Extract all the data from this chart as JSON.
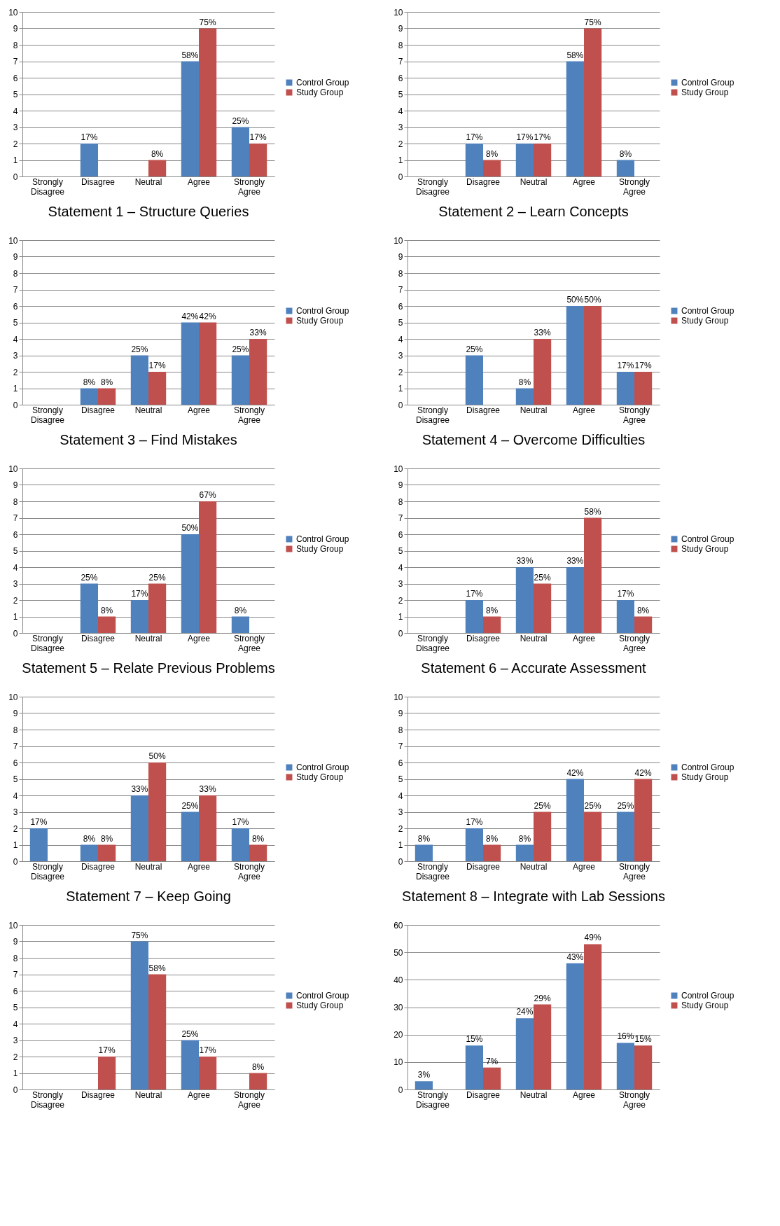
{
  "chart_data": [
    {
      "type": "bar",
      "title": "Statement 1 – Structure Queries",
      "categories": [
        "Strongly Disagree",
        "Disagree",
        "Neutral",
        "Agree",
        "Strongly Agree"
      ],
      "ylim": [
        0,
        10
      ],
      "yticks": [
        0,
        1,
        2,
        3,
        4,
        5,
        6,
        7,
        8,
        9,
        10
      ],
      "grid": "y",
      "legend": "right",
      "series": [
        {
          "name": "Control Group",
          "color": "#4f81bd",
          "values": [
            0,
            2,
            0,
            7,
            3
          ]
        },
        {
          "name": "Study Group",
          "color": "#c0504d",
          "values": [
            0,
            0,
            1,
            9,
            2
          ]
        }
      ],
      "annotations": [
        {
          "text": "17%",
          "x": "Disagree",
          "y": 2
        },
        {
          "text": "58%",
          "x": "Agree",
          "y": 7
        },
        {
          "text": "25%",
          "x": "Strongly Agree",
          "y": 3
        },
        {
          "text": "8%",
          "x": "Neutral",
          "y": 1
        },
        {
          "text": "75%",
          "x": "Agree",
          "y": 9
        },
        {
          "text": "17%",
          "x": "Strongly Agree",
          "y": 2
        }
      ]
    },
    {
      "type": "bar",
      "title": "Statement 2 – Learn Concepts",
      "categories": [
        "Strongly Disagree",
        "Disagree",
        "Neutral",
        "Agree",
        "Strongly Agree"
      ],
      "ylim": [
        0,
        10
      ],
      "yticks": [
        0,
        1,
        2,
        3,
        4,
        5,
        6,
        7,
        8,
        9,
        10
      ],
      "grid": "y",
      "legend": "right",
      "series": [
        {
          "name": "Control Group",
          "color": "#4f81bd",
          "values": [
            0,
            2,
            2,
            7,
            1
          ]
        },
        {
          "name": "Study Group",
          "color": "#c0504d",
          "values": [
            0,
            1,
            2,
            9,
            0
          ]
        }
      ],
      "annotations": [
        {
          "text": "17%",
          "x": "Disagree",
          "y": 2
        },
        {
          "text": "17%",
          "x": "Neutral",
          "y": 2
        },
        {
          "text": "58%",
          "x": "Agree",
          "y": 7
        },
        {
          "text": "8%",
          "x": "Strongly Agree",
          "y": 1
        },
        {
          "text": "8%",
          "x": "Disagree",
          "y": 1
        },
        {
          "text": "17%",
          "x": "Neutral",
          "y": 2
        },
        {
          "text": "75%",
          "x": "Agree",
          "y": 9
        }
      ]
    },
    {
      "type": "bar",
      "title": "Statement 3 – Find Mistakes",
      "categories": [
        "Strongly Disagree",
        "Disagree",
        "Neutral",
        "Agree",
        "Strongly Agree"
      ],
      "ylim": [
        0,
        10
      ],
      "yticks": [
        0,
        1,
        2,
        3,
        4,
        5,
        6,
        7,
        8,
        9,
        10
      ],
      "grid": "y",
      "legend": "right",
      "series": [
        {
          "name": "Control Group",
          "color": "#4f81bd",
          "values": [
            0,
            1,
            3,
            5,
            3
          ]
        },
        {
          "name": "Study Group",
          "color": "#c0504d",
          "values": [
            0,
            1,
            2,
            5,
            4
          ]
        }
      ],
      "annotations": [
        {
          "text": "8%",
          "x": "Disagree",
          "y": 1
        },
        {
          "text": "25%",
          "x": "Neutral",
          "y": 3
        },
        {
          "text": "42%",
          "x": "Agree",
          "y": 5
        },
        {
          "text": "25%",
          "x": "Strongly Agree",
          "y": 3
        },
        {
          "text": "8%",
          "x": "Disagree",
          "y": 1
        },
        {
          "text": "17%",
          "x": "Neutral",
          "y": 2
        },
        {
          "text": "42%",
          "x": "Agree",
          "y": 5
        },
        {
          "text": "33%",
          "x": "Strongly Agree",
          "y": 4
        }
      ]
    },
    {
      "type": "bar",
      "title": "Statement 4 – Overcome Difficulties",
      "categories": [
        "Strongly Disagree",
        "Disagree",
        "Neutral",
        "Agree",
        "Strongly Agree"
      ],
      "ylim": [
        0,
        10
      ],
      "yticks": [
        0,
        1,
        2,
        3,
        4,
        5,
        6,
        7,
        8,
        9,
        10
      ],
      "grid": "y",
      "legend": "right",
      "series": [
        {
          "name": "Control Group",
          "color": "#4f81bd",
          "values": [
            0,
            3,
            1,
            6,
            2
          ]
        },
        {
          "name": "Study Group",
          "color": "#c0504d",
          "values": [
            0,
            0,
            4,
            6,
            2
          ]
        }
      ],
      "annotations": [
        {
          "text": "25%",
          "x": "Disagree",
          "y": 3
        },
        {
          "text": "8%",
          "x": "Neutral",
          "y": 1
        },
        {
          "text": "50%",
          "x": "Agree",
          "y": 6
        },
        {
          "text": "17%",
          "x": "Strongly Agree",
          "y": 2
        },
        {
          "text": "33%",
          "x": "Neutral",
          "y": 4
        },
        {
          "text": "50%",
          "x": "Agree",
          "y": 6
        },
        {
          "text": "17%",
          "x": "Strongly Agree",
          "y": 2
        }
      ]
    },
    {
      "type": "bar",
      "title": "Statement 5 – Relate Previous Problems",
      "categories": [
        "Strongly Disagree",
        "Disagree",
        "Neutral",
        "Agree",
        "Strongly Agree"
      ],
      "ylim": [
        0,
        10
      ],
      "yticks": [
        0,
        1,
        2,
        3,
        4,
        5,
        6,
        7,
        8,
        9,
        10
      ],
      "grid": "y",
      "legend": "right",
      "series": [
        {
          "name": "Control Group",
          "color": "#4f81bd",
          "values": [
            0,
            3,
            2,
            6,
            1
          ]
        },
        {
          "name": "Study Group",
          "color": "#c0504d",
          "values": [
            0,
            1,
            3,
            8,
            0
          ]
        }
      ],
      "annotations": [
        {
          "text": "25%",
          "x": "Disagree",
          "y": 3
        },
        {
          "text": "17%",
          "x": "Neutral",
          "y": 2
        },
        {
          "text": "50%",
          "x": "Agree",
          "y": 6
        },
        {
          "text": "8%",
          "x": "Strongly Agree",
          "y": 1
        },
        {
          "text": "8%",
          "x": "Disagree",
          "y": 1
        },
        {
          "text": "25%",
          "x": "Neutral",
          "y": 3
        },
        {
          "text": "67%",
          "x": "Agree",
          "y": 8
        }
      ]
    },
    {
      "type": "bar",
      "title": "Statement 6 – Accurate Assessment",
      "categories": [
        "Strongly Disagree",
        "Disagree",
        "Neutral",
        "Agree",
        "Strongly Agree"
      ],
      "ylim": [
        0,
        10
      ],
      "yticks": [
        0,
        1,
        2,
        3,
        4,
        5,
        6,
        7,
        8,
        9,
        10
      ],
      "grid": "y",
      "legend": "right",
      "series": [
        {
          "name": "Control Group",
          "color": "#4f81bd",
          "values": [
            0,
            2,
            4,
            4,
            2
          ]
        },
        {
          "name": "Study Group",
          "color": "#c0504d",
          "values": [
            0,
            1,
            3,
            7,
            1
          ]
        }
      ],
      "annotations": [
        {
          "text": "17%",
          "x": "Disagree",
          "y": 2
        },
        {
          "text": "33%",
          "x": "Neutral",
          "y": 4
        },
        {
          "text": "33%",
          "x": "Agree",
          "y": 4
        },
        {
          "text": "17%",
          "x": "Strongly Agree",
          "y": 2
        },
        {
          "text": "8%",
          "x": "Disagree",
          "y": 1
        },
        {
          "text": "25%",
          "x": "Neutral",
          "y": 3
        },
        {
          "text": "58%",
          "x": "Agree",
          "y": 7
        },
        {
          "text": "8%",
          "x": "Strongly Agree",
          "y": 1
        }
      ]
    },
    {
      "type": "bar",
      "title": "Statement 7 – Keep Going",
      "categories": [
        "Strongly Disagree",
        "Disagree",
        "Neutral",
        "Agree",
        "Strongly Agree"
      ],
      "ylim": [
        0,
        10
      ],
      "yticks": [
        0,
        1,
        2,
        3,
        4,
        5,
        6,
        7,
        8,
        9,
        10
      ],
      "grid": "y",
      "legend": "right",
      "series": [
        {
          "name": "Control Group",
          "color": "#4f81bd",
          "values": [
            2,
            1,
            4,
            3,
            2
          ]
        },
        {
          "name": "Study Group",
          "color": "#c0504d",
          "values": [
            0,
            1,
            6,
            4,
            1
          ]
        }
      ],
      "annotations": [
        {
          "text": "17%",
          "x": "Strongly Disagree",
          "y": 2
        },
        {
          "text": "8%",
          "x": "Disagree",
          "y": 1
        },
        {
          "text": "33%",
          "x": "Neutral",
          "y": 4
        },
        {
          "text": "25%",
          "x": "Agree",
          "y": 3
        },
        {
          "text": "17%",
          "x": "Strongly Agree",
          "y": 2
        },
        {
          "text": "8%",
          "x": "Disagree",
          "y": 1
        },
        {
          "text": "50%",
          "x": "Neutral",
          "y": 6
        },
        {
          "text": "33%",
          "x": "Agree",
          "y": 4
        },
        {
          "text": "8%",
          "x": "Strongly Agree",
          "y": 1
        }
      ]
    },
    {
      "type": "bar",
      "title": "Statement 8 – Integrate with Lab Sessions",
      "categories": [
        "Strongly Disagree",
        "Disagree",
        "Neutral",
        "Agree",
        "Strongly Agree"
      ],
      "ylim": [
        0,
        10
      ],
      "yticks": [
        0,
        1,
        2,
        3,
        4,
        5,
        6,
        7,
        8,
        9,
        10
      ],
      "grid": "y",
      "legend": "right",
      "series": [
        {
          "name": "Control Group",
          "color": "#4f81bd",
          "values": [
            1,
            2,
            1,
            5,
            3
          ]
        },
        {
          "name": "Study Group",
          "color": "#c0504d",
          "values": [
            0,
            1,
            3,
            3,
            5
          ]
        }
      ],
      "annotations": [
        {
          "text": "8%",
          "x": "Strongly Disagree",
          "y": 1
        },
        {
          "text": "17%",
          "x": "Disagree",
          "y": 2
        },
        {
          "text": "8%",
          "x": "Neutral",
          "y": 1
        },
        {
          "text": "42%",
          "x": "Agree",
          "y": 5
        },
        {
          "text": "25%",
          "x": "Strongly Agree",
          "y": 3
        },
        {
          "text": "8%",
          "x": "Disagree",
          "y": 1
        },
        {
          "text": "25%",
          "x": "Neutral",
          "y": 3
        },
        {
          "text": "25%",
          "x": "Agree",
          "y": 3
        },
        {
          "text": "42%",
          "x": "Strongly Agree",
          "y": 5
        }
      ]
    },
    {
      "type": "bar",
      "categories": [
        "Strongly Disagree",
        "Disagree",
        "Neutral",
        "Agree",
        "Strongly Agree"
      ],
      "ylim": [
        0,
        10
      ],
      "yticks": [
        0,
        1,
        2,
        3,
        4,
        5,
        6,
        7,
        8,
        9,
        10
      ],
      "grid": "y",
      "legend": "right",
      "series": [
        {
          "name": "Control Group",
          "color": "#4f81bd",
          "values": [
            0,
            0,
            9,
            3,
            0
          ]
        },
        {
          "name": "Study Group",
          "color": "#c0504d",
          "values": [
            0,
            2,
            7,
            2,
            1
          ]
        }
      ],
      "annotations": [
        {
          "text": "75%",
          "x": "Neutral",
          "y": 9
        },
        {
          "text": "25%",
          "x": "Agree",
          "y": 3
        },
        {
          "text": "17%",
          "x": "Disagree",
          "y": 2
        },
        {
          "text": "58%",
          "x": "Neutral",
          "y": 7
        },
        {
          "text": "17%",
          "x": "Agree",
          "y": 2
        },
        {
          "text": "8%",
          "x": "Strongly Agree",
          "y": 1
        }
      ]
    },
    {
      "type": "bar",
      "categories": [
        "Strongly Disagree",
        "Disagree",
        "Neutral",
        "Agree",
        "Strongly Agree"
      ],
      "ylim": [
        0,
        60
      ],
      "yticks": [
        0,
        10,
        20,
        30,
        40,
        50,
        60
      ],
      "grid": "y",
      "legend": "right",
      "series": [
        {
          "name": "Control Group",
          "color": "#4f81bd",
          "values": [
            3,
            16,
            26,
            46,
            17
          ]
        },
        {
          "name": "Study Group",
          "color": "#c0504d",
          "values": [
            0,
            8,
            31,
            53,
            16
          ]
        }
      ],
      "annotations": [
        {
          "text": "3%",
          "x": "Strongly Disagree",
          "y": 3
        },
        {
          "text": "15%",
          "x": "Disagree",
          "y": 16
        },
        {
          "text": "24%",
          "x": "Neutral",
          "y": 26
        },
        {
          "text": "43%",
          "x": "Agree",
          "y": 46
        },
        {
          "text": "16%",
          "x": "Strongly Agree",
          "y": 17
        },
        {
          "text": "7%",
          "x": "Disagree",
          "y": 8
        },
        {
          "text": "29%",
          "x": "Neutral",
          "y": 31
        },
        {
          "text": "49%",
          "x": "Agree",
          "y": 53
        },
        {
          "text": "15%",
          "x": "Strongly Agree",
          "y": 16
        }
      ]
    }
  ]
}
